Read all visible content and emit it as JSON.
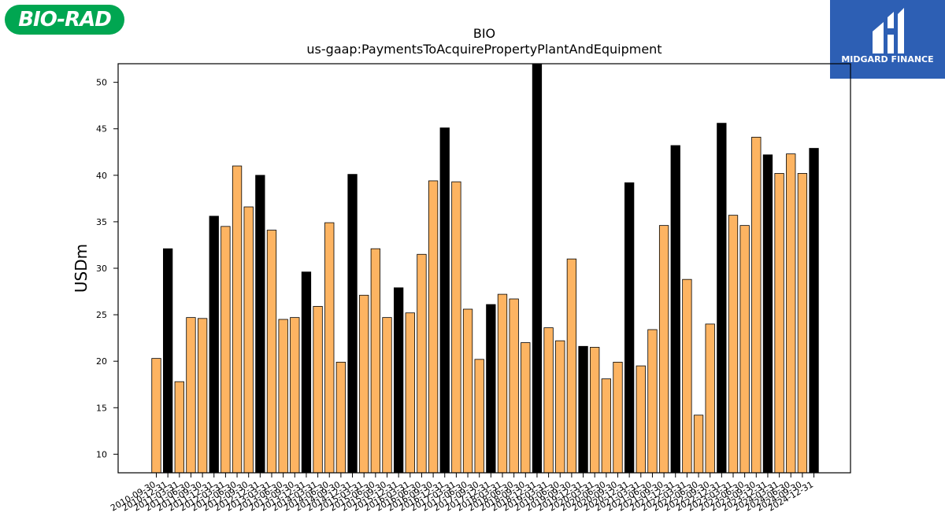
{
  "logos": {
    "left_text": "BIO-RAD",
    "left_color": "#00a651",
    "right_text": "MIDGARD FINANCE",
    "right_color": "#2d5fb4"
  },
  "chart_data": {
    "type": "bar",
    "title": "BIO",
    "subtitle": "us-gaap:PaymentsToAcquirePropertyPlantAndEquipment",
    "xlabel": "",
    "ylabel": "USDm",
    "ylim": [
      8,
      52
    ],
    "yticks": [
      10,
      15,
      20,
      25,
      30,
      35,
      40,
      45,
      50
    ],
    "grid": false,
    "colors": {
      "quarter": "#fdb462",
      "year_end": "#000000"
    },
    "categories": [
      "2010-09-30",
      "2010-12-31",
      "2011-03-31",
      "2011-06-30",
      "2011-09-30",
      "2011-12-31",
      "2012-03-31",
      "2012-06-30",
      "2012-09-30",
      "2012-12-31",
      "2013-03-31",
      "2013-06-30",
      "2013-09-30",
      "2013-12-31",
      "2014-03-31",
      "2014-06-30",
      "2014-09-30",
      "2014-12-31",
      "2015-03-31",
      "2015-06-30",
      "2015-09-30",
      "2015-12-31",
      "2016-03-31",
      "2016-06-30",
      "2016-09-30",
      "2016-12-31",
      "2017-03-31",
      "2017-06-30",
      "2017-09-30",
      "2017-12-31",
      "2018-03-31",
      "2018-06-30",
      "2018-09-30",
      "2018-12-31",
      "2019-03-31",
      "2019-06-30",
      "2019-09-30",
      "2019-12-31",
      "2020-03-31",
      "2020-06-30",
      "2020-09-30",
      "2020-12-31",
      "2021-03-31",
      "2021-06-30",
      "2021-09-30",
      "2021-12-31",
      "2022-03-31",
      "2022-06-30",
      "2022-09-30",
      "2022-12-31",
      "2023-03-31",
      "2023-06-30",
      "2023-09-30",
      "2023-12-31",
      "2024-03-31",
      "2024-06-30",
      "2024-09-30",
      "2024-12-31"
    ],
    "values": [
      20.3,
      32.1,
      17.8,
      24.7,
      24.6,
      35.6,
      34.5,
      41.0,
      36.6,
      40.0,
      34.1,
      24.5,
      24.7,
      29.6,
      25.9,
      34.9,
      19.9,
      40.1,
      27.1,
      32.1,
      24.7,
      27.9,
      25.2,
      31.5,
      39.4,
      45.1,
      39.3,
      25.6,
      20.2,
      26.1,
      27.2,
      26.7,
      22.0,
      52.0,
      23.6,
      22.2,
      31.0,
      21.6,
      21.5,
      18.1,
      19.9,
      39.2,
      19.5,
      23.4,
      34.6,
      43.2,
      28.8,
      14.2,
      24.0,
      45.6,
      35.7,
      34.6,
      44.1,
      42.2,
      40.2,
      42.3,
      40.2,
      42.9
    ],
    "highlight": [
      false,
      true,
      false,
      false,
      false,
      true,
      false,
      false,
      false,
      true,
      false,
      false,
      false,
      true,
      false,
      false,
      false,
      true,
      false,
      false,
      false,
      true,
      false,
      false,
      false,
      true,
      false,
      false,
      false,
      true,
      false,
      false,
      false,
      true,
      false,
      false,
      false,
      true,
      false,
      false,
      false,
      true,
      false,
      false,
      false,
      true,
      false,
      false,
      false,
      true,
      false,
      false,
      false,
      true,
      false,
      false,
      false,
      true
    ]
  }
}
